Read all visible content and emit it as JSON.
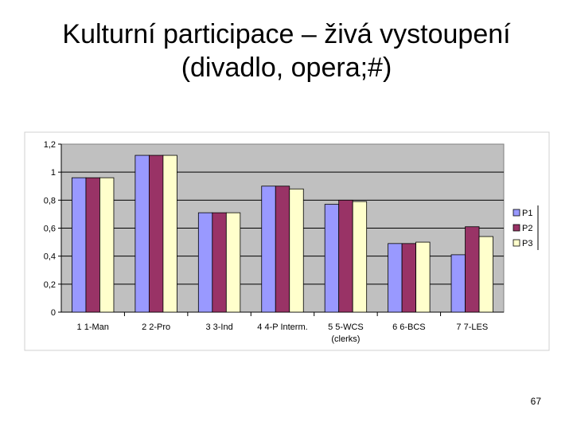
{
  "slide": {
    "title_line1": "Kulturní participace – živá vystoupení",
    "title_line2": "(divadlo, opera;#)",
    "page_number": "67"
  },
  "chart_data": {
    "type": "bar",
    "categories": [
      "1 1-Man",
      "2 2-Pro",
      "3 3-Ind",
      "4 4-P Interm.",
      "5 5-WCS",
      "6 6-BCS",
      "7 7-LES"
    ],
    "category_sublabels": [
      "",
      "",
      "",
      "",
      "(clerks)",
      "",
      ""
    ],
    "series": [
      {
        "name": "P1",
        "color": "#9999ff",
        "values": [
          0.96,
          1.12,
          0.71,
          0.9,
          0.77,
          0.49,
          0.41
        ]
      },
      {
        "name": "P2",
        "color": "#993366",
        "values": [
          0.96,
          1.12,
          0.71,
          0.9,
          0.8,
          0.49,
          0.61
        ]
      },
      {
        "name": "P3",
        "color": "#ffffcc",
        "values": [
          0.96,
          1.12,
          0.71,
          0.88,
          0.79,
          0.5,
          0.54
        ]
      }
    ],
    "ytick_labels": [
      "0",
      "0,2",
      "0,4",
      "0,6",
      "0,8",
      "1",
      "1,2"
    ],
    "ylim": [
      0,
      1.2
    ],
    "grid": true,
    "plot_background": "#c0c0c0",
    "legend_position": "right"
  }
}
